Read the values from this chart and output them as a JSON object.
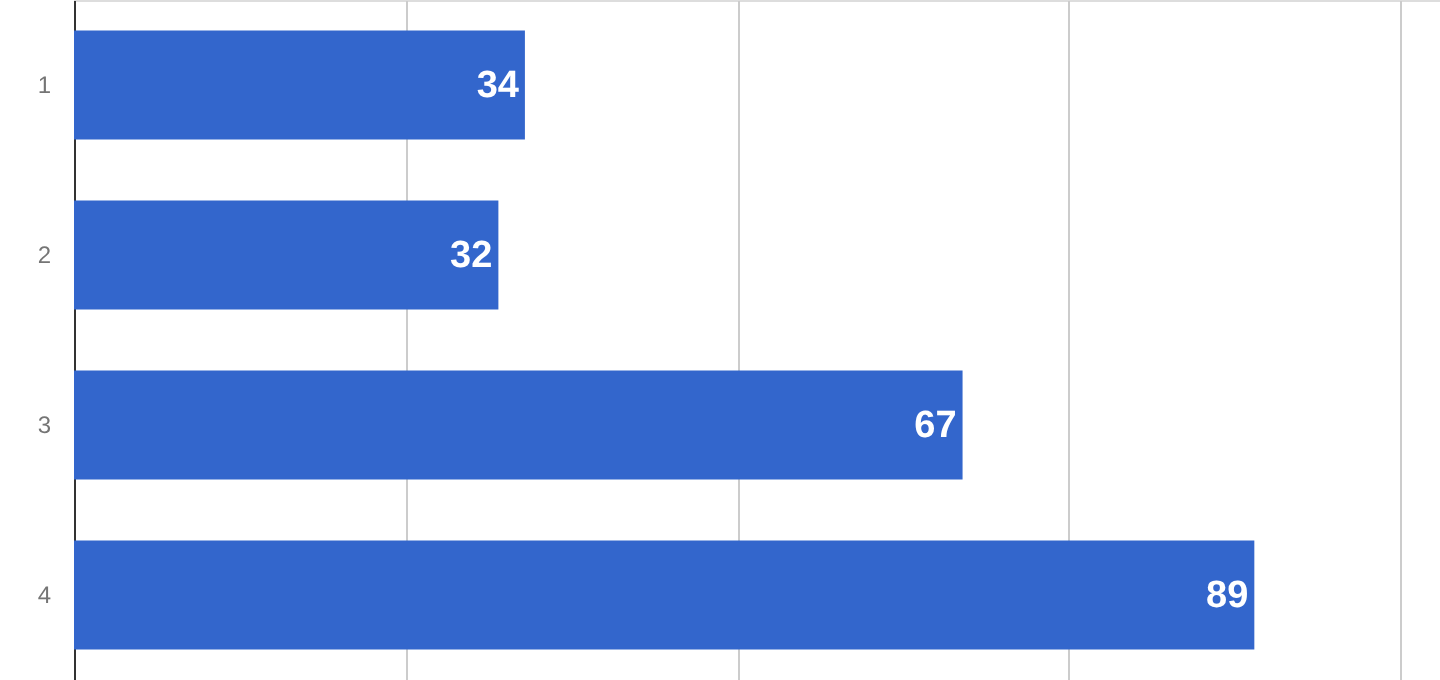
{
  "chart_data": {
    "type": "bar",
    "orientation": "horizontal",
    "categories": [
      "1",
      "2",
      "3",
      "4"
    ],
    "values": [
      34,
      32,
      67,
      89
    ],
    "color": "#3366cc",
    "data_labels": true,
    "xlim": [
      0,
      103
    ],
    "xticks": [
      {
        "value": 0,
        "label": null
      },
      {
        "value": 25,
        "label": null
      },
      {
        "value": 50,
        "label": null
      },
      {
        "value": 75,
        "label": null
      },
      {
        "value": 100,
        "label": null
      }
    ],
    "grid": "x",
    "tick_labels": "y"
  }
}
